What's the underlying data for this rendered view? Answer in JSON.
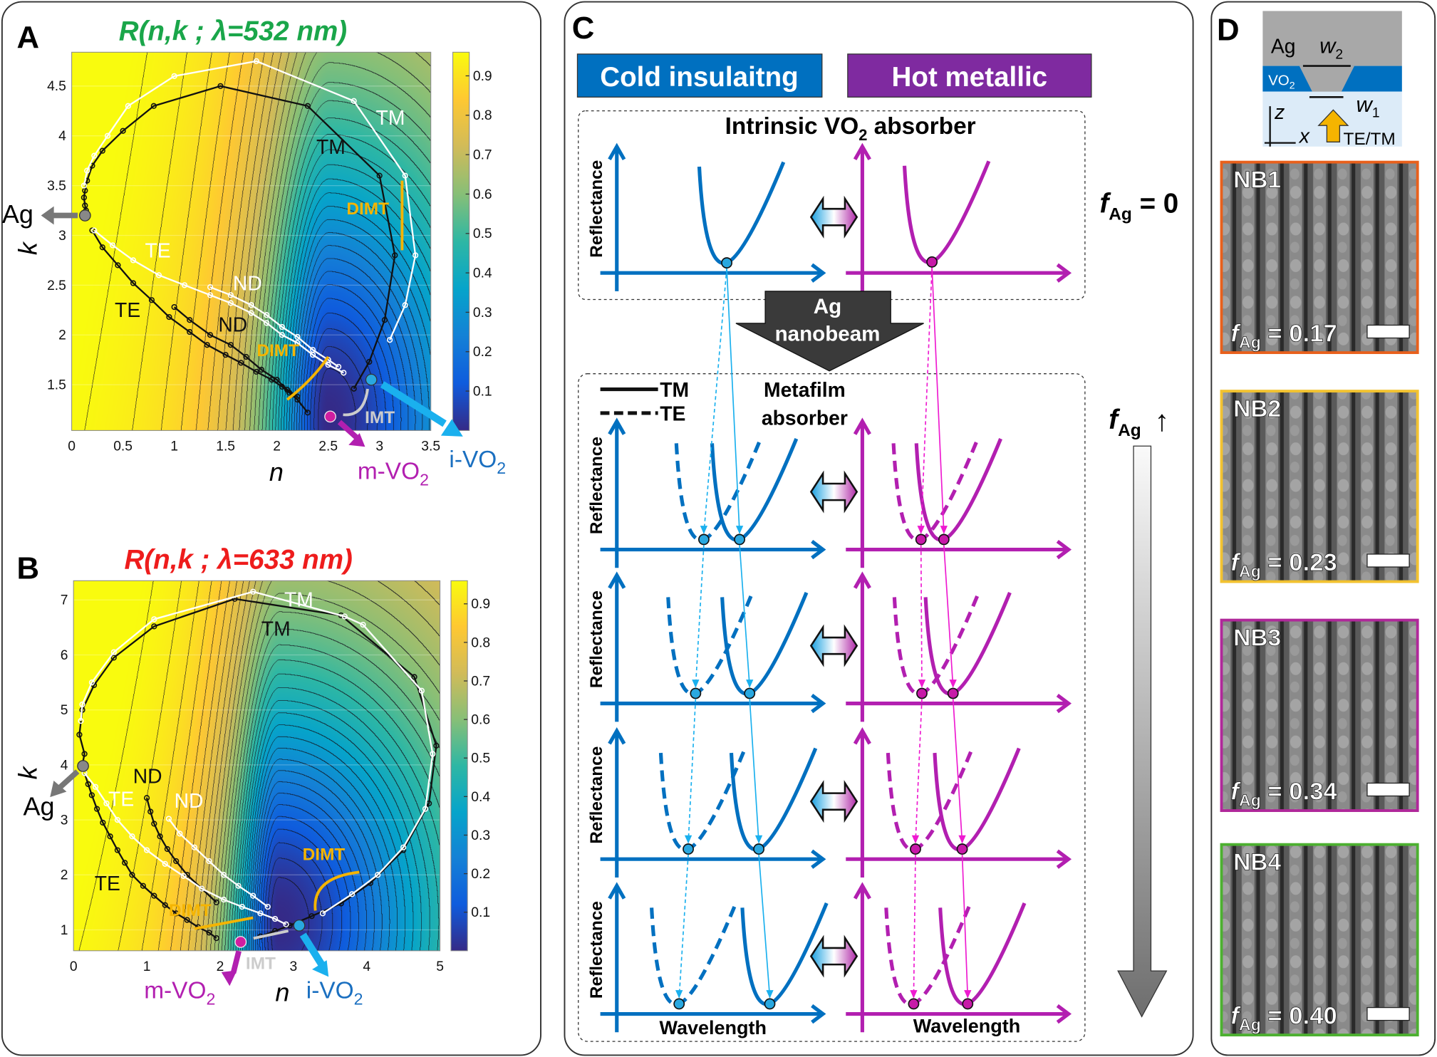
{
  "panel_letters": {
    "a": "A",
    "b": "B",
    "c": "C",
    "d": "D"
  },
  "chart_data": [
    {
      "type": "heatmap",
      "id": "A",
      "title": "R(n,k ; λ=532 nm)",
      "title_color": "#1aa64a",
      "xlabel": "n",
      "ylabel": "k",
      "xlim": [
        0,
        3.5
      ],
      "ylim": [
        1.04,
        4.84
      ],
      "xticks": [
        "0",
        "0.5",
        "1",
        "1.5",
        "2",
        "2.5",
        "3",
        "3.5"
      ],
      "xtick_values": [
        0,
        0.5,
        1,
        1.5,
        2,
        2.5,
        3,
        3.5
      ],
      "yticks": [
        "1.5",
        "2",
        "2.5",
        "3",
        "3.5",
        "4",
        "4.5"
      ],
      "ytick_values": [
        1.5,
        2,
        2.5,
        3,
        3.5,
        4,
        4.5
      ],
      "colorbar": {
        "range": [
          0,
          0.96
        ],
        "ticks": [
          "0.1",
          "0.2",
          "0.3",
          "0.4",
          "0.5",
          "0.6",
          "0.7",
          "0.8",
          "0.9"
        ],
        "tick_values": [
          0.1,
          0.2,
          0.3,
          0.4,
          0.5,
          0.6,
          0.7,
          0.8,
          0.9
        ]
      },
      "minimum": {
        "n": 2.5,
        "k": 1.15
      },
      "series": [
        {
          "name": "TM (black)",
          "color": "#111111",
          "points": [
            [
              2.75,
              1.46
            ],
            [
              2.9,
              1.73
            ],
            [
              3.05,
              2.15
            ],
            [
              3.15,
              2.8
            ],
            [
              3.0,
              3.6
            ],
            [
              2.3,
              4.3
            ],
            [
              1.45,
              4.5
            ],
            [
              0.8,
              4.3
            ],
            [
              0.5,
              4.05
            ],
            [
              0.3,
              3.85
            ],
            [
              0.2,
              3.7
            ],
            [
              0.15,
              3.55
            ],
            [
              0.13,
              3.45
            ],
            [
              0.12,
              3.38
            ],
            [
              0.13,
              3.3
            ],
            [
              0.14,
              3.25
            ]
          ]
        },
        {
          "name": "TM (white)",
          "color": "#ffffff",
          "points": [
            [
              3.1,
              1.95
            ],
            [
              3.25,
              2.3
            ],
            [
              3.35,
              2.8
            ],
            [
              3.25,
              3.6
            ],
            [
              2.75,
              4.35
            ],
            [
              1.8,
              4.75
            ],
            [
              1.0,
              4.6
            ],
            [
              0.55,
              4.3
            ],
            [
              0.35,
              4.0
            ],
            [
              0.22,
              3.8
            ],
            [
              0.15,
              3.65
            ],
            [
              0.12,
              3.5
            ]
          ]
        },
        {
          "name": "TE (black)",
          "color": "#111111",
          "points": [
            [
              0.2,
              3.05
            ],
            [
              0.3,
              2.88
            ],
            [
              0.45,
              2.7
            ],
            [
              0.6,
              2.52
            ],
            [
              0.78,
              2.35
            ],
            [
              0.95,
              2.18
            ],
            [
              1.15,
              2.03
            ],
            [
              1.32,
              1.9
            ],
            [
              1.5,
              1.8
            ],
            [
              1.65,
              1.72
            ],
            [
              1.8,
              1.63
            ],
            [
              1.95,
              1.55
            ],
            [
              2.05,
              1.48
            ],
            [
              2.12,
              1.42
            ],
            [
              2.2,
              1.35
            ],
            [
              2.3,
              1.22
            ]
          ]
        },
        {
          "name": "ND (black)",
          "color": "#111111",
          "points": [
            [
              1.0,
              2.28
            ],
            [
              1.15,
              2.15
            ],
            [
              1.35,
              2.0
            ],
            [
              1.55,
              1.9
            ],
            [
              1.7,
              1.78
            ],
            [
              1.85,
              1.65
            ],
            [
              2.0,
              1.55
            ],
            [
              2.1,
              1.45
            ],
            [
              2.2,
              1.38
            ]
          ]
        },
        {
          "name": "TE (white)",
          "color": "#ffffff",
          "points": [
            [
              0.22,
              3.05
            ],
            [
              0.4,
              2.9
            ],
            [
              0.6,
              2.75
            ],
            [
              0.85,
              2.6
            ],
            [
              1.1,
              2.5
            ],
            [
              1.35,
              2.4
            ],
            [
              1.55,
              2.32
            ],
            [
              1.75,
              2.22
            ],
            [
              1.9,
              2.12
            ],
            [
              2.05,
              2.0
            ],
            [
              2.2,
              1.92
            ],
            [
              2.35,
              1.8
            ],
            [
              2.5,
              1.7
            ],
            [
              2.65,
              1.62
            ]
          ]
        },
        {
          "name": "ND (white)",
          "color": "#ffffff",
          "points": [
            [
              1.35,
              2.48
            ],
            [
              1.55,
              2.4
            ],
            [
              1.75,
              2.3
            ],
            [
              1.9,
              2.2
            ],
            [
              2.05,
              2.08
            ],
            [
              2.2,
              1.98
            ],
            [
              2.35,
              1.85
            ],
            [
              2.5,
              1.75
            ],
            [
              2.6,
              1.68
            ]
          ]
        }
      ],
      "markers": {
        "ag": {
          "n": 0.13,
          "k": 3.2
        },
        "m_vo2": {
          "n": 2.52,
          "k": 1.18
        },
        "i_vo2": {
          "n": 2.92,
          "k": 1.55
        }
      },
      "labels": {
        "tm_white": "TM",
        "tm_black": "TM",
        "te_white": "TE",
        "te_black": "TE",
        "nd_white": "ND",
        "nd_black": "ND",
        "dimt1": "DIMT",
        "dimt2": "DIMT",
        "imt": "IMT",
        "ag": "Ag",
        "m_vo2": "m-VO",
        "i_vo2": "i-VO",
        "sub2": "2"
      }
    },
    {
      "type": "heatmap",
      "id": "B",
      "title": "R(n,k ; λ=633 nm)",
      "title_color": "#ee1c1c",
      "xlabel": "n",
      "ylabel": "k",
      "xlim": [
        0,
        5
      ],
      "ylim": [
        0.62,
        7.35
      ],
      "xticks": [
        "0",
        "1",
        "2",
        "3",
        "4",
        "5"
      ],
      "xtick_values": [
        0,
        1,
        2,
        3,
        4,
        5
      ],
      "yticks": [
        "1",
        "2",
        "3",
        "4",
        "5",
        "6",
        "7"
      ],
      "ytick_values": [
        1,
        2,
        3,
        4,
        5,
        6,
        7
      ],
      "colorbar": {
        "range": [
          0,
          0.96
        ],
        "ticks": [
          "0.1",
          "0.2",
          "0.3",
          "0.4",
          "0.5",
          "0.6",
          "0.7",
          "0.8",
          "0.9"
        ],
        "tick_values": [
          0.1,
          0.2,
          0.3,
          0.4,
          0.5,
          0.6,
          0.7,
          0.8,
          0.9
        ]
      },
      "minimum": {
        "n": 2.8,
        "k": 1.15
      },
      "series": [
        {
          "name": "TM (black)",
          "color": "#111111",
          "points": [
            [
              2.55,
              0.88
            ],
            [
              2.75,
              0.98
            ],
            [
              2.95,
              1.08
            ],
            [
              3.25,
              1.25
            ],
            [
              3.65,
              1.48
            ],
            [
              4.05,
              1.85
            ],
            [
              4.5,
              2.45
            ],
            [
              4.85,
              3.3
            ],
            [
              4.95,
              4.35
            ],
            [
              4.65,
              5.6
            ],
            [
              3.65,
              6.72
            ],
            [
              2.2,
              7.02
            ],
            [
              1.1,
              6.52
            ],
            [
              0.55,
              5.95
            ],
            [
              0.28,
              5.45
            ],
            [
              0.12,
              5.0
            ],
            [
              0.08,
              4.55
            ],
            [
              0.15,
              4.2
            ],
            [
              0.12,
              4.0
            ]
          ]
        },
        {
          "name": "TM (white)",
          "color": "#ffffff",
          "points": [
            [
              3.4,
              1.3
            ],
            [
              3.8,
              1.65
            ],
            [
              4.15,
              2.0
            ],
            [
              4.5,
              2.5
            ],
            [
              4.8,
              3.2
            ],
            [
              4.9,
              4.2
            ],
            [
              4.75,
              5.35
            ],
            [
              3.95,
              6.55
            ],
            [
              3.7,
              6.7
            ],
            [
              2.45,
              7.15
            ],
            [
              1.1,
              6.65
            ],
            [
              0.55,
              6.05
            ],
            [
              0.25,
              5.5
            ],
            [
              0.12,
              5.1
            ],
            [
              0.1,
              4.8
            ]
          ]
        },
        {
          "name": "TE (black)",
          "color": "#111111",
          "points": [
            [
              0.15,
              3.85
            ],
            [
              0.2,
              3.65
            ],
            [
              0.25,
              3.45
            ],
            [
              0.32,
              3.2
            ],
            [
              0.4,
              2.95
            ],
            [
              0.5,
              2.7
            ],
            [
              0.6,
              2.45
            ],
            [
              0.7,
              2.22
            ],
            [
              0.8,
              2.0
            ],
            [
              0.95,
              1.8
            ],
            [
              1.1,
              1.62
            ],
            [
              1.25,
              1.45
            ],
            [
              1.4,
              1.3
            ],
            [
              1.55,
              1.18
            ],
            [
              1.7,
              1.05
            ],
            [
              1.85,
              0.95
            ],
            [
              1.95,
              0.85
            ]
          ]
        },
        {
          "name": "ND (black)",
          "color": "#111111",
          "points": [
            [
              1.0,
              3.4
            ],
            [
              1.05,
              3.15
            ],
            [
              1.1,
              2.93
            ],
            [
              1.18,
              2.7
            ],
            [
              1.28,
              2.47
            ],
            [
              1.4,
              2.25
            ],
            [
              1.55,
              2.0
            ],
            [
              1.75,
              1.75
            ],
            [
              1.95,
              1.5
            ]
          ]
        },
        {
          "name": "TE (white)",
          "color": "#ffffff",
          "points": [
            [
              0.15,
              3.85
            ],
            [
              0.3,
              3.6
            ],
            [
              0.45,
              3.3
            ],
            [
              0.6,
              3.0
            ],
            [
              0.8,
              2.7
            ],
            [
              1.0,
              2.45
            ],
            [
              1.25,
              2.2
            ],
            [
              1.5,
              1.98
            ],
            [
              1.75,
              1.75
            ],
            [
              2.05,
              1.55
            ],
            [
              2.3,
              1.42
            ],
            [
              2.55,
              1.3
            ],
            [
              2.75,
              1.2
            ],
            [
              2.9,
              1.1
            ]
          ]
        },
        {
          "name": "ND (white)",
          "color": "#ffffff",
          "points": [
            [
              1.3,
              3.02
            ],
            [
              1.45,
              2.75
            ],
            [
              1.65,
              2.5
            ],
            [
              1.85,
              2.25
            ],
            [
              2.05,
              2.0
            ],
            [
              2.25,
              1.8
            ],
            [
              2.45,
              1.62
            ],
            [
              2.65,
              1.42
            ]
          ]
        }
      ],
      "markers": {
        "ag": {
          "n": 0.13,
          "k": 3.98
        },
        "m_vo2": {
          "n": 2.28,
          "k": 0.78
        },
        "i_vo2": {
          "n": 3.08,
          "k": 1.08
        }
      },
      "labels": {
        "tm_white": "TM",
        "tm_black": "TM",
        "te_white": "TE",
        "te_black": "TE",
        "nd_white": "ND",
        "nd_black": "ND",
        "dimt1": "DIMT",
        "dimt2": "DIMT",
        "imt": "IMT",
        "ag": "Ag",
        "m_vo2": "m-VO",
        "i_vo2": "i-VO",
        "sub2": "2"
      }
    }
  ],
  "panel_c": {
    "cold_label": "Cold insulaitng",
    "hot_label": "Hot metallic",
    "intrinsic_title": "Intrinsic VO",
    "intrinsic_sub": "2",
    "intrinsic_suffix": " absorber",
    "ylabel": "Reflectance",
    "f_symbol": "f",
    "f_sub": "Ag",
    "f_zero": " = 0",
    "f_up": "↑",
    "arrow_line1": "Ag",
    "arrow_line2": "nanobeam",
    "legend_tm": "TM",
    "legend_te": "TE",
    "metafilm_line1": "Metafilm",
    "metafilm_line2": "absorber",
    "xlabel": "Wavelength",
    "colors": {
      "cold": "#0070c0",
      "hot": "#b21fb0",
      "cold_box": "#0070c0",
      "hot_box": "#7f2aa0",
      "cold_dot": "#29a8e0",
      "hot_dot": "#c71aa8"
    }
  },
  "panel_d": {
    "schematic": {
      "ag": "Ag",
      "vo2": "VO",
      "vo2_sub": "2",
      "w2": "w",
      "w2_sub": "2",
      "w1": "w",
      "w1_sub": "1",
      "z": "z",
      "x": "x",
      "pol": "TE/TM"
    },
    "samples": [
      {
        "name": "NB1",
        "f_value": " = 0.17",
        "border": "#e8601c"
      },
      {
        "name": "NB2",
        "f_value": " = 0.23",
        "border": "#f2c230"
      },
      {
        "name": "NB3",
        "f_value": " = 0.34",
        "border": "#b0289a"
      },
      {
        "name": "NB4",
        "f_value": " = 0.40",
        "border": "#4cb030"
      }
    ],
    "f_symbol": "f",
    "f_sub": "Ag"
  }
}
